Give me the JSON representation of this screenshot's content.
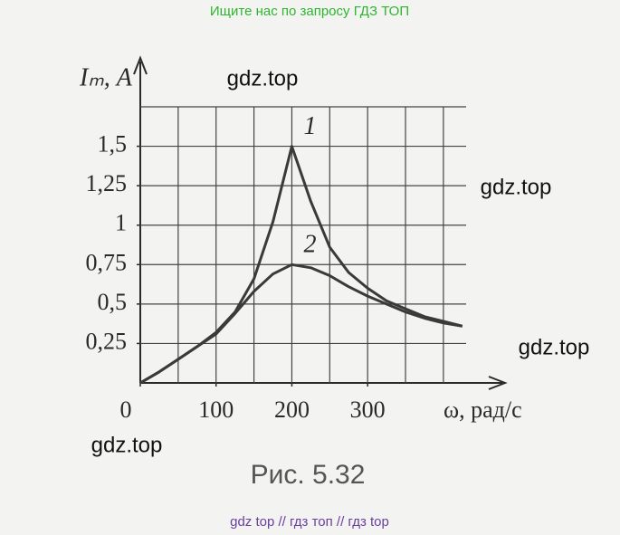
{
  "header": {
    "text": "Ищите нас по запросу ГДЗ ТОП"
  },
  "watermarks": [
    "gdz.top",
    "gdz.top",
    "gdz.top",
    "gdz.top"
  ],
  "caption": "Рис. 5.32",
  "footer": {
    "text": "gdz top  //  гдз топ  //  гдз top"
  },
  "chart_data": {
    "type": "line",
    "y_label": "Iₘ, А",
    "x_label": "ω, рад/с",
    "x": [
      0,
      25,
      50,
      75,
      100,
      125,
      150,
      175,
      200,
      225,
      250,
      275,
      300,
      325,
      350,
      375,
      400,
      425
    ],
    "series": [
      {
        "name": "1",
        "color": "#3a3a3a",
        "values": [
          0,
          0.07,
          0.15,
          0.23,
          0.32,
          0.45,
          0.66,
          1.02,
          1.5,
          1.15,
          0.86,
          0.7,
          0.6,
          0.52,
          0.47,
          0.42,
          0.39,
          0.36
        ]
      },
      {
        "name": "2",
        "color": "#3a3a3a",
        "values": [
          0,
          0.07,
          0.15,
          0.23,
          0.31,
          0.44,
          0.58,
          0.69,
          0.75,
          0.73,
          0.68,
          0.61,
          0.55,
          0.5,
          0.45,
          0.41,
          0.38,
          0.36
        ]
      }
    ],
    "xlim": [
      0,
      430
    ],
    "ylim": [
      0,
      1.75
    ],
    "xticks": [
      0,
      100,
      200,
      300
    ],
    "yticks": [
      {
        "value": 0.25,
        "label": "0,25"
      },
      {
        "value": 0.5,
        "label": "0,5"
      },
      {
        "value": 0.75,
        "label": "0,75"
      },
      1,
      {
        "value": 1.25,
        "label": "1,25"
      },
      {
        "value": 1.5,
        "label": "1,5"
      }
    ],
    "xgrid": [
      50,
      100,
      150,
      200,
      250,
      300,
      350,
      400
    ],
    "ygrid": [
      0.25,
      0.5,
      0.75,
      1,
      1.25,
      1.5,
      1.75
    ],
    "grid": true
  }
}
